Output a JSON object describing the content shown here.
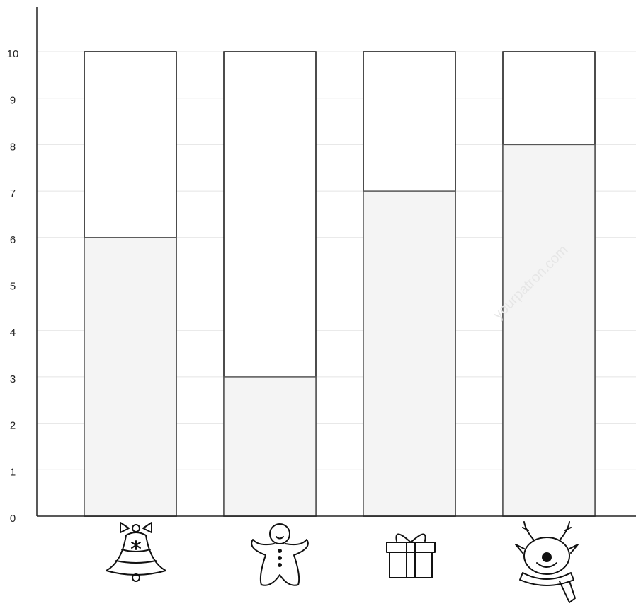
{
  "chart_data": {
    "type": "bar",
    "categories": [
      null,
      null,
      null,
      null
    ],
    "values": [
      6,
      3,
      7,
      8
    ],
    "color": "#f4f4f4",
    "ylim": [
      0,
      10
    ],
    "yticks": [
      0,
      1,
      2,
      3,
      4,
      5,
      6,
      7,
      8,
      9,
      10
    ],
    "grid": true,
    "watermark": "yourpatron.com"
  }
}
